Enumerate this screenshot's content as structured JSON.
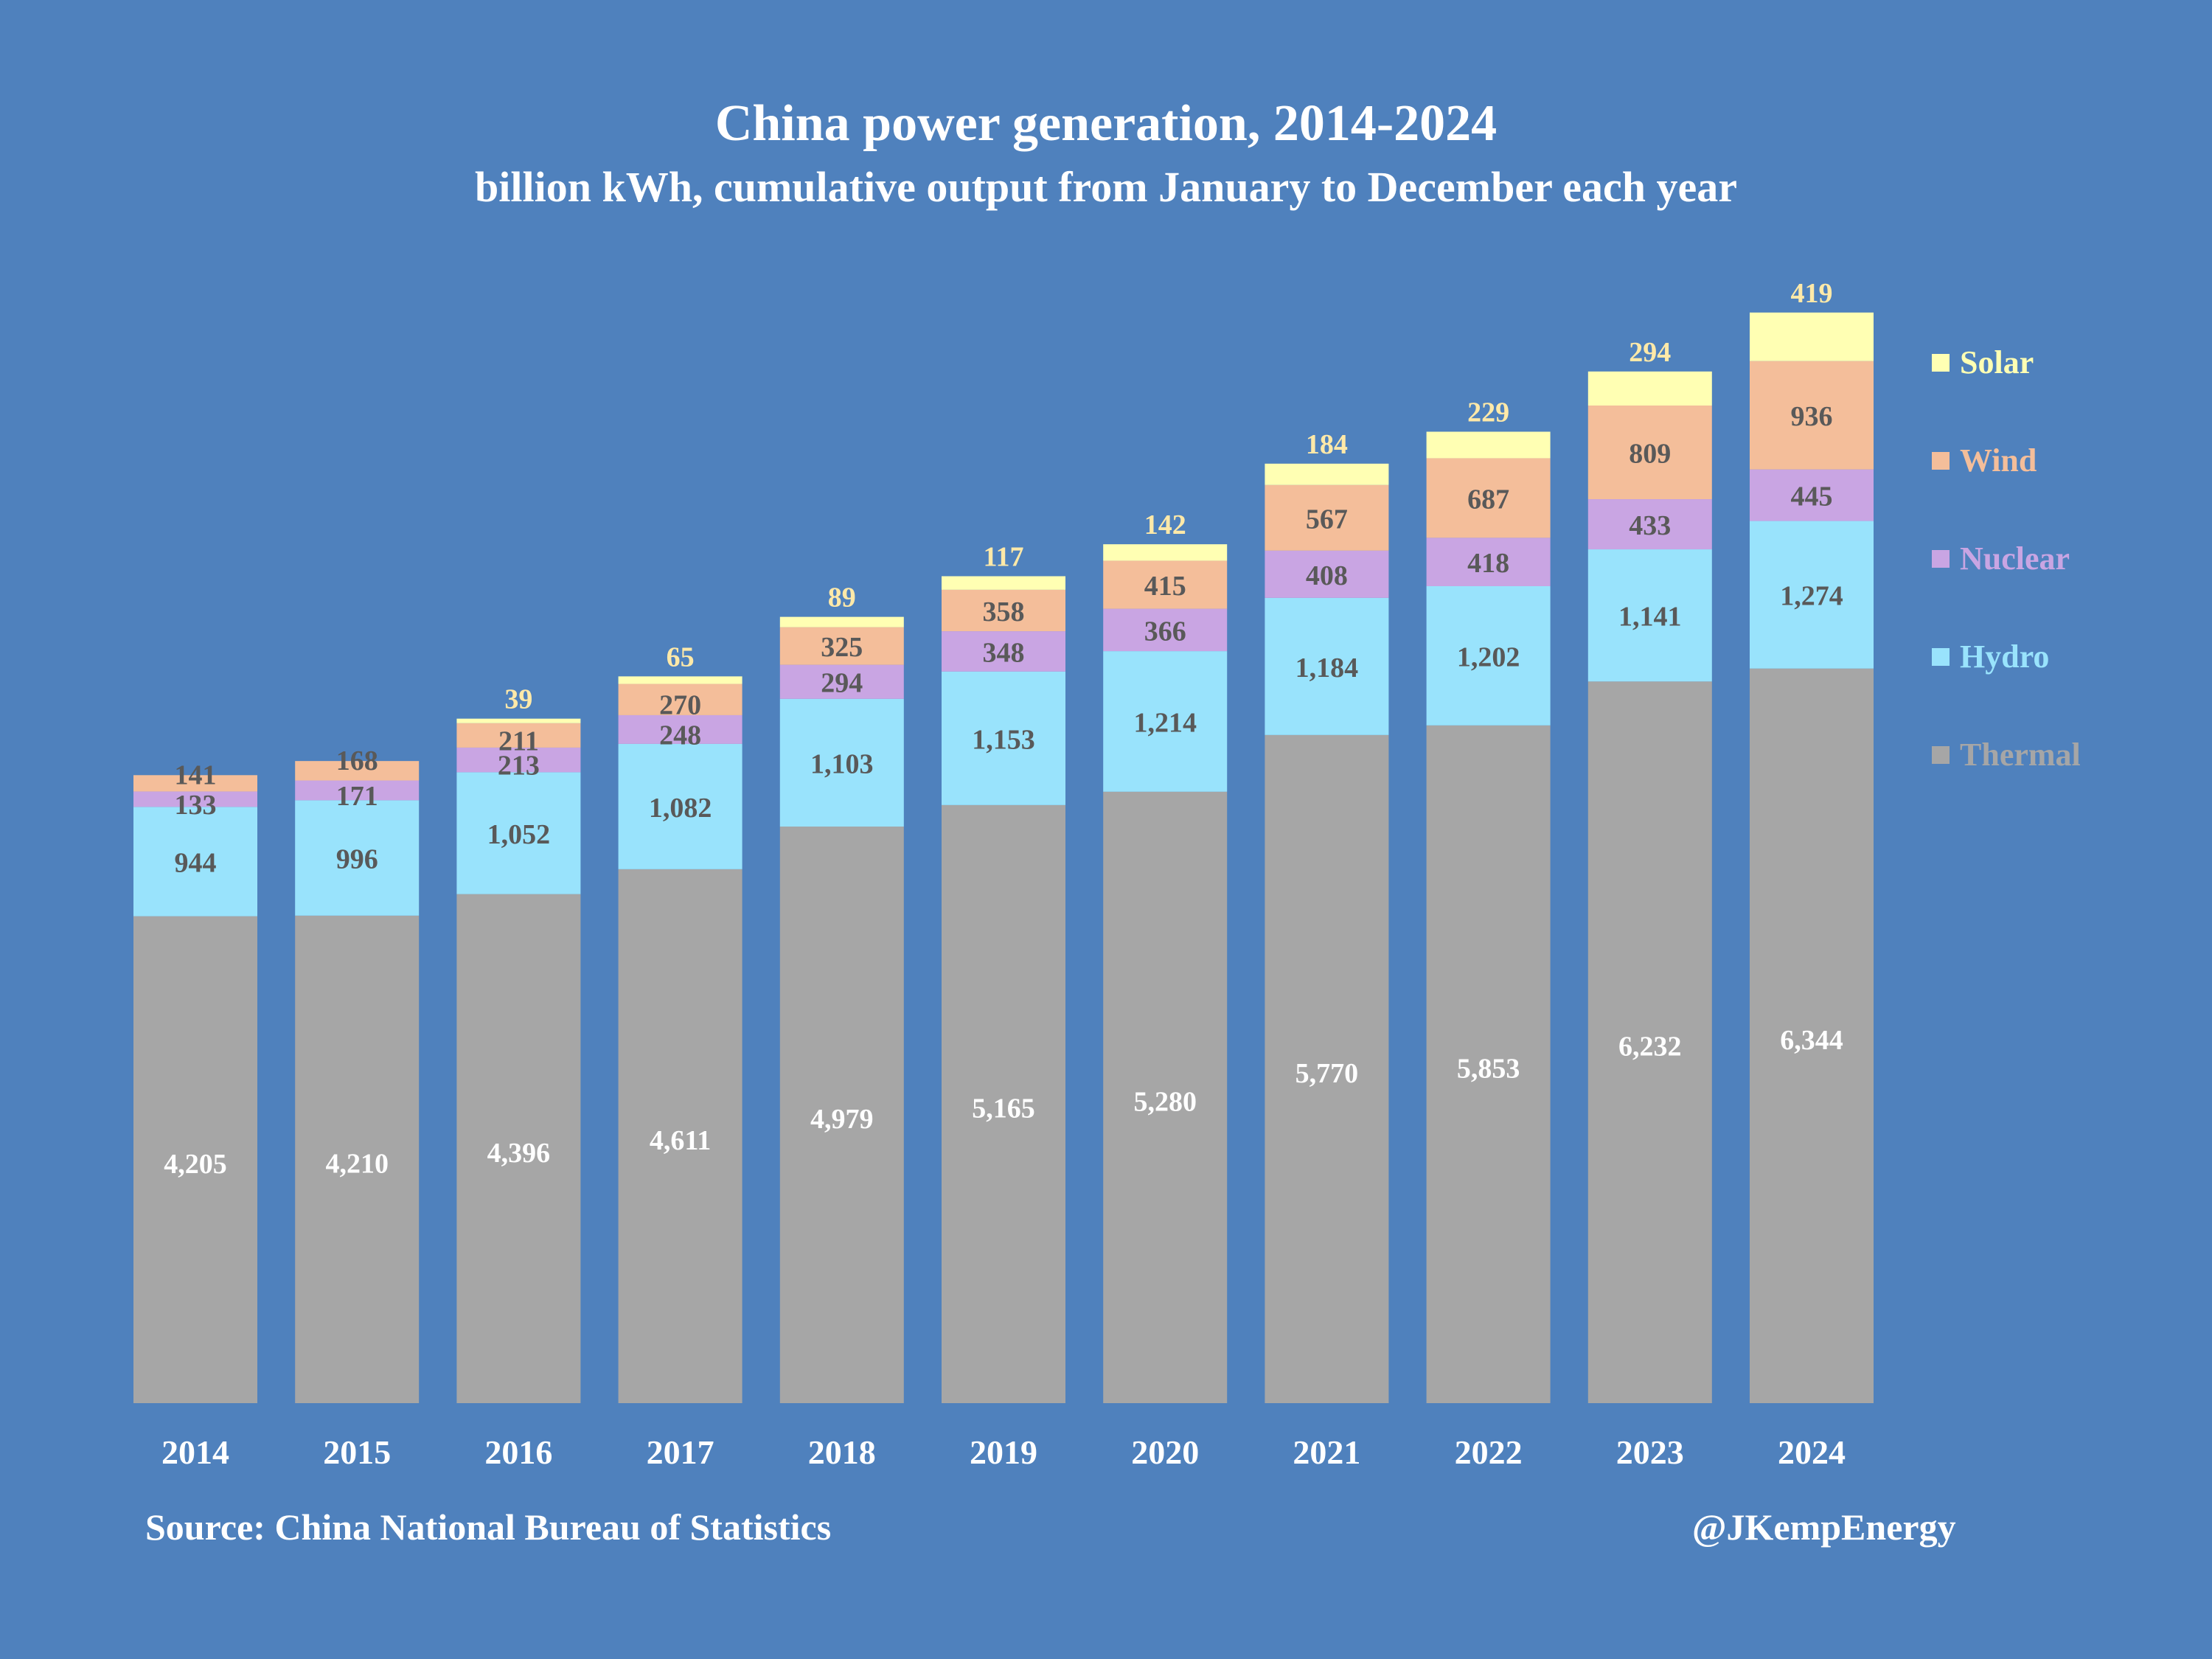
{
  "chart_data": {
    "type": "bar",
    "stacked": true,
    "title": "China power generation, 2014-2024",
    "subtitle": "billion kWh, cumulative output from January to December each year",
    "xlabel": "",
    "ylabel": "",
    "ylim": [
      0,
      9500
    ],
    "grid": false,
    "legend_position": "right",
    "categories": [
      "2014",
      "2015",
      "2016",
      "2017",
      "2018",
      "2019",
      "2020",
      "2021",
      "2022",
      "2023",
      "2024"
    ],
    "series": [
      {
        "name": "Thermal",
        "color": "#a6a6a6",
        "label_color": "#ffffff",
        "values": [
          4205,
          4210,
          4396,
          4611,
          4979,
          5165,
          5280,
          5770,
          5853,
          6232,
          6344
        ],
        "labels": [
          "4,205",
          "4,210",
          "4,396",
          "4,611",
          "4,979",
          "5,165",
          "5,280",
          "5,770",
          "5,853",
          "6,232",
          "6,344"
        ]
      },
      {
        "name": "Hydro",
        "color": "#99e3fc",
        "label_color": "#595959",
        "values": [
          944,
          996,
          1052,
          1082,
          1103,
          1153,
          1214,
          1184,
          1202,
          1141,
          1274
        ],
        "labels": [
          "944",
          "996",
          "1,052",
          "1,082",
          "1,103",
          "1,153",
          "1,214",
          "1,184",
          "1,202",
          "1,141",
          "1,274"
        ]
      },
      {
        "name": "Nuclear",
        "color": "#c9a5e3",
        "label_color": "#595959",
        "values": [
          133,
          171,
          213,
          248,
          294,
          348,
          366,
          408,
          418,
          433,
          445
        ],
        "labels": [
          "133",
          "171",
          "213",
          "248",
          "294",
          "348",
          "366",
          "408",
          "418",
          "433",
          "445"
        ]
      },
      {
        "name": "Wind",
        "color": "#f4be9a",
        "label_color": "#595959",
        "values": [
          141,
          168,
          211,
          270,
          325,
          358,
          415,
          567,
          687,
          809,
          936
        ],
        "labels": [
          "141",
          "168",
          "211",
          "270",
          "325",
          "358",
          "415",
          "567",
          "687",
          "809",
          "936"
        ]
      },
      {
        "name": "Solar",
        "color": "#ffffb3",
        "label_color": "#ffe9a8",
        "values": [
          null,
          null,
          39,
          65,
          89,
          117,
          142,
          184,
          229,
          294,
          419
        ],
        "labels": [
          "",
          "",
          "39",
          "65",
          "89",
          "117",
          "142",
          "184",
          "229",
          "294",
          "419"
        ]
      }
    ],
    "legend": [
      "Solar",
      "Wind",
      "Nuclear",
      "Hydro",
      "Thermal"
    ]
  },
  "footer": {
    "source": "Source: China National Bureau of Statistics",
    "credit": "@JKempEnergy"
  },
  "colors": {
    "background": "#4f81bd",
    "thermal": "#a6a6a6",
    "hydro": "#99e3fc",
    "nuclear": "#c9a5e3",
    "wind": "#f4be9a",
    "solar": "#ffffb3"
  }
}
